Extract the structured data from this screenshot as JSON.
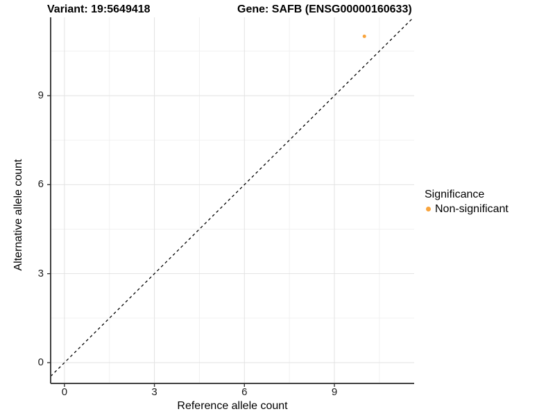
{
  "header": {
    "title_left": "Variant: 19:5649418",
    "title_right": "Gene: SAFB (ENSG00000160633)"
  },
  "chart_data": {
    "type": "scatter",
    "title_left": "Variant: 19:5649418",
    "title_right": "Gene: SAFB (ENSG00000160633)",
    "xlabel": "Reference allele count",
    "ylabel": "Alternative allele count",
    "xlim": [
      -0.46,
      11.66
    ],
    "ylim": [
      -0.7,
      11.64
    ],
    "x_ticks": [
      0,
      3,
      6,
      9
    ],
    "y_ticks": [
      0,
      3,
      6,
      9
    ],
    "x_minor_ticks": [
      1.5,
      4.5,
      7.5,
      10.5
    ],
    "y_minor_ticks": [
      1.5,
      4.5,
      7.5,
      10.5
    ],
    "grid": "major+minor",
    "identity_line": {
      "type": "y=x",
      "style": "dashed",
      "color": "#000000"
    },
    "series": [
      {
        "name": "Non-significant",
        "color": "#F9A43C",
        "points": [
          {
            "x": 10,
            "y": 11
          }
        ]
      }
    ],
    "legend": {
      "position": "right",
      "title": "Significance",
      "items": [
        {
          "label": "Non-significant",
          "color": "#F9A43C"
        }
      ]
    }
  },
  "colors": {
    "grid_major": "#E2E2E2",
    "grid_minor": "#F0F0F0",
    "axis_line": "#3f3f3f",
    "tick_mark": "#333333",
    "tick_text": "#1a1a1a",
    "point": "#F9A43C"
  }
}
